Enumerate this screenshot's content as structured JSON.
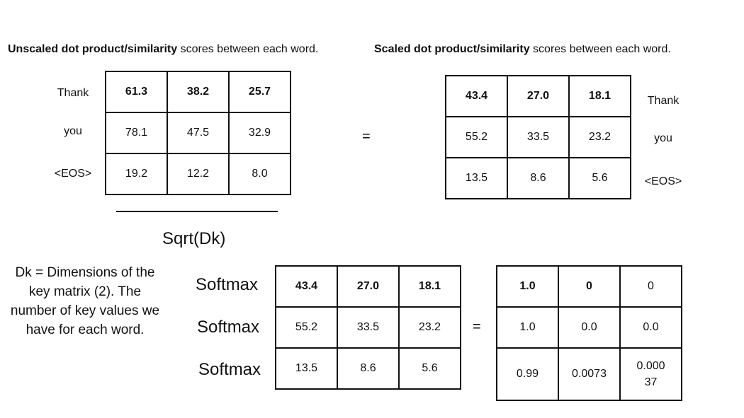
{
  "headings": {
    "unscaled_bold": "Unscaled dot product/similarity",
    "unscaled_rest": " scores between each word.",
    "scaled_bold": "Scaled dot product/similarity",
    "scaled_rest": " scores between each word."
  },
  "row_labels": [
    "Thank",
    "you",
    "<EOS>"
  ],
  "unscaled_matrix": [
    [
      "61.3",
      "38.2",
      "25.7"
    ],
    [
      "78.1",
      "47.5",
      "32.9"
    ],
    [
      "19.2",
      "12.2",
      "8.0"
    ]
  ],
  "scaled_matrix": [
    [
      "43.4",
      "27.0",
      "18.1"
    ],
    [
      "55.2",
      "33.5",
      "23.2"
    ],
    [
      "13.5",
      "8.6",
      "5.6"
    ]
  ],
  "softmax_input_matrix": [
    [
      "43.4",
      "27.0",
      "18.1"
    ],
    [
      "55.2",
      "33.5",
      "23.2"
    ],
    [
      "13.5",
      "8.6",
      "5.6"
    ]
  ],
  "softmax_output_matrix": [
    [
      "1.0",
      "0",
      "0"
    ],
    [
      "1.0",
      "0.0",
      "0.0"
    ],
    [
      "0.99",
      "0.0073",
      "0.000\n37"
    ]
  ],
  "equals_sign": "=",
  "denominator": "Sqrt(Dk)",
  "softmax_label": "Softmax",
  "note": "Dk = Dimensions of the key matrix (2). The number of key values we have for each word."
}
